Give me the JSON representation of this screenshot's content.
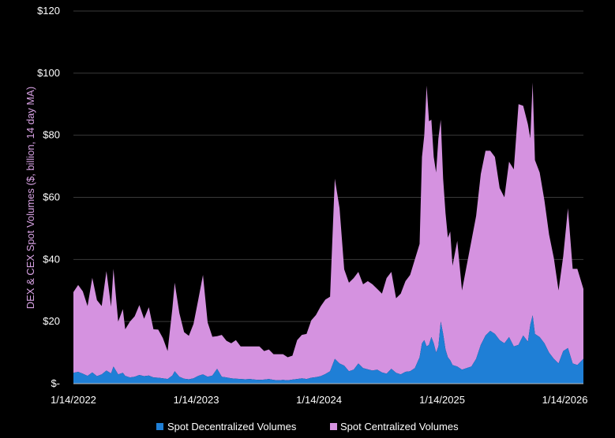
{
  "chart_data": {
    "type": "area",
    "stacked": true,
    "title": "",
    "xlabel": "",
    "ylabel": "DEX & CEX Spot Volumes ($, billion, 14 day MA)",
    "ylim": [
      0,
      120
    ],
    "yticks": [
      0,
      20,
      40,
      60,
      80,
      100,
      120
    ],
    "ytick_labels": [
      "$-",
      "$20",
      "$40",
      "$60",
      "$80",
      "$100",
      "$120"
    ],
    "xticks": [
      "1/14/2022",
      "1/14/2023",
      "1/14/2024",
      "1/14/2025",
      "1/14/2026"
    ],
    "x_range": [
      "2022-01-14",
      "2026-03-10"
    ],
    "grid": "horizontal",
    "legend_position": "bottom",
    "colors": {
      "dex": "#1f7fd6",
      "cex": "#d592e0",
      "background": "#000000"
    },
    "x": [
      "2022-01-14",
      "2022-01-28",
      "2022-02-11",
      "2022-02-25",
      "2022-03-11",
      "2022-03-25",
      "2022-04-08",
      "2022-04-22",
      "2022-05-06",
      "2022-05-13",
      "2022-05-27",
      "2022-06-10",
      "2022-06-17",
      "2022-07-01",
      "2022-07-15",
      "2022-07-29",
      "2022-08-12",
      "2022-08-26",
      "2022-09-09",
      "2022-09-23",
      "2022-10-07",
      "2022-10-21",
      "2022-11-04",
      "2022-11-11",
      "2022-11-25",
      "2022-12-09",
      "2022-12-23",
      "2023-01-06",
      "2023-01-20",
      "2023-02-03",
      "2023-02-17",
      "2023-03-03",
      "2023-03-17",
      "2023-03-31",
      "2023-04-14",
      "2023-04-28",
      "2023-05-12",
      "2023-05-26",
      "2023-06-09",
      "2023-06-23",
      "2023-07-07",
      "2023-07-21",
      "2023-08-04",
      "2023-08-18",
      "2023-09-01",
      "2023-09-15",
      "2023-09-29",
      "2023-10-13",
      "2023-10-27",
      "2023-11-10",
      "2023-11-24",
      "2023-12-08",
      "2023-12-22",
      "2024-01-05",
      "2024-01-19",
      "2024-02-02",
      "2024-02-16",
      "2024-03-01",
      "2024-03-15",
      "2024-03-29",
      "2024-04-12",
      "2024-04-26",
      "2024-05-10",
      "2024-05-24",
      "2024-06-07",
      "2024-06-21",
      "2024-07-05",
      "2024-07-19",
      "2024-08-02",
      "2024-08-16",
      "2024-08-30",
      "2024-09-13",
      "2024-09-27",
      "2024-10-11",
      "2024-10-25",
      "2024-11-08",
      "2024-11-15",
      "2024-11-22",
      "2024-11-29",
      "2024-12-06",
      "2024-12-13",
      "2024-12-20",
      "2024-12-27",
      "2025-01-03",
      "2025-01-10",
      "2025-01-17",
      "2025-01-24",
      "2025-01-31",
      "2025-02-07",
      "2025-02-14",
      "2025-02-28",
      "2025-03-14",
      "2025-03-28",
      "2025-04-11",
      "2025-04-25",
      "2025-05-09",
      "2025-05-23",
      "2025-06-06",
      "2025-06-20",
      "2025-07-04",
      "2025-07-18",
      "2025-08-01",
      "2025-08-15",
      "2025-08-29",
      "2025-09-12",
      "2025-09-26",
      "2025-10-03",
      "2025-10-10",
      "2025-10-17",
      "2025-10-31",
      "2025-11-14",
      "2025-11-28",
      "2025-12-12",
      "2025-12-26",
      "2026-01-09",
      "2026-01-23",
      "2026-02-06",
      "2026-02-20",
      "2026-03-10"
    ],
    "series": [
      {
        "name": "Spot Decentralized Volumes",
        "values": [
          3.5,
          3.8,
          3.2,
          2.5,
          3.6,
          2.4,
          3.0,
          4.2,
          3.3,
          5.5,
          3.0,
          3.5,
          2.5,
          2.0,
          2.2,
          2.8,
          2.4,
          2.6,
          2.0,
          1.9,
          1.7,
          1.5,
          2.6,
          4.0,
          2.2,
          1.6,
          1.4,
          1.7,
          2.5,
          3.0,
          2.2,
          2.6,
          4.8,
          2.2,
          2.0,
          1.7,
          1.6,
          1.5,
          1.4,
          1.5,
          1.3,
          1.2,
          1.3,
          1.5,
          1.2,
          1.1,
          1.2,
          1.1,
          1.3,
          1.5,
          1.7,
          1.5,
          1.9,
          2.1,
          2.4,
          3.1,
          4.0,
          8.0,
          6.5,
          5.8,
          4.0,
          4.5,
          6.5,
          5.0,
          4.6,
          4.2,
          4.5,
          3.6,
          3.2,
          4.8,
          3.5,
          3.0,
          3.8,
          4.0,
          5.0,
          8.5,
          13.0,
          14.0,
          12.0,
          12.5,
          15.0,
          13.0,
          10.0,
          12.0,
          20.0,
          16.0,
          11.0,
          8.5,
          7.5,
          6.0,
          5.5,
          4.5,
          5.0,
          5.5,
          8.0,
          12.5,
          15.5,
          17.0,
          16.0,
          14.0,
          13.0,
          15.0,
          12.0,
          12.5,
          15.5,
          13.5,
          19.0,
          22.0,
          16.0,
          15.0,
          13.0,
          10.0,
          8.0,
          6.5,
          10.5,
          11.5,
          6.5,
          6.0,
          8.0
        ]
      },
      {
        "name": "Spot Centralized Volumes",
        "values": [
          26.0,
          28.0,
          26.5,
          22.5,
          30.5,
          24.5,
          22.0,
          32.0,
          21.5,
          31.5,
          17.0,
          20.5,
          15.0,
          18.0,
          19.5,
          22.5,
          18.5,
          22.0,
          15.5,
          15.5,
          13.0,
          9.0,
          21.5,
          28.5,
          20.5,
          15.0,
          14.0,
          17.5,
          24.5,
          32.0,
          17.5,
          12.5,
          10.5,
          13.5,
          11.8,
          11.3,
          12.4,
          10.5,
          10.6,
          10.5,
          10.7,
          10.8,
          9.2,
          9.5,
          8.3,
          8.4,
          8.3,
          7.4,
          7.7,
          12.5,
          14.0,
          14.5,
          18.5,
          20.0,
          22.5,
          24.0,
          24.0,
          58.0,
          50.0,
          31.0,
          28.5,
          29.5,
          29.5,
          27.0,
          28.4,
          27.8,
          26.0,
          25.4,
          30.8,
          31.2,
          24.0,
          26.0,
          29.2,
          31.0,
          35.0,
          36.5,
          60.0,
          66.0,
          84.0,
          72.0,
          70.0,
          60.0,
          58.0,
          67.0,
          65.0,
          50.0,
          44.0,
          38.5,
          41.5,
          32.0,
          40.5,
          25.5,
          33.0,
          40.5,
          46.0,
          55.0,
          59.5,
          58.0,
          57.0,
          49.0,
          47.0,
          56.5,
          57.0,
          77.5,
          74.0,
          70.0,
          60.0,
          75.0,
          56.0,
          53.0,
          46.0,
          38.0,
          32.5,
          23.5,
          30.5,
          45.0,
          30.5,
          31.0,
          22.5
        ]
      }
    ]
  },
  "legend": {
    "items": [
      {
        "label": "Spot Decentralized Volumes",
        "color": "#1f7fd6"
      },
      {
        "label": "Spot Centralized Volumes",
        "color": "#d592e0"
      }
    ]
  }
}
